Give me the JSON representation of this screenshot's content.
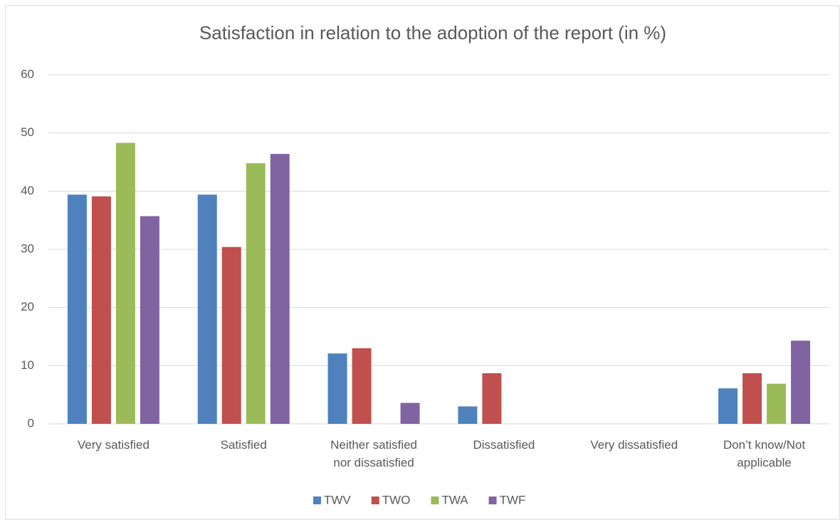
{
  "chart_data": {
    "type": "bar",
    "title": "Satisfaction in relation to the adoption of the report (in %)",
    "categories": [
      "Very satisfied",
      "Satisfied",
      "Neither satisfied nor dissatisfied",
      "Dissatisfied",
      "Very dissatisfied",
      "Don’t know/Not applicable"
    ],
    "series": [
      {
        "name": "TWV",
        "color": "#4f81bd",
        "values": [
          39.4,
          39.4,
          12.1,
          3.0,
          0,
          6.1
        ]
      },
      {
        "name": "TWO",
        "color": "#c0504d",
        "values": [
          39.1,
          30.4,
          13.0,
          8.7,
          0,
          8.7
        ]
      },
      {
        "name": "TWA",
        "color": "#9bbb59",
        "values": [
          48.3,
          44.8,
          0,
          0,
          0,
          6.9
        ]
      },
      {
        "name": "TWF",
        "color": "#8064a2",
        "values": [
          35.7,
          46.4,
          3.6,
          0,
          0,
          14.3
        ]
      }
    ],
    "ylim": [
      0,
      60
    ],
    "yticks": [
      0,
      10,
      20,
      30,
      40,
      50,
      60
    ],
    "grid": true,
    "legend": "bottom"
  }
}
